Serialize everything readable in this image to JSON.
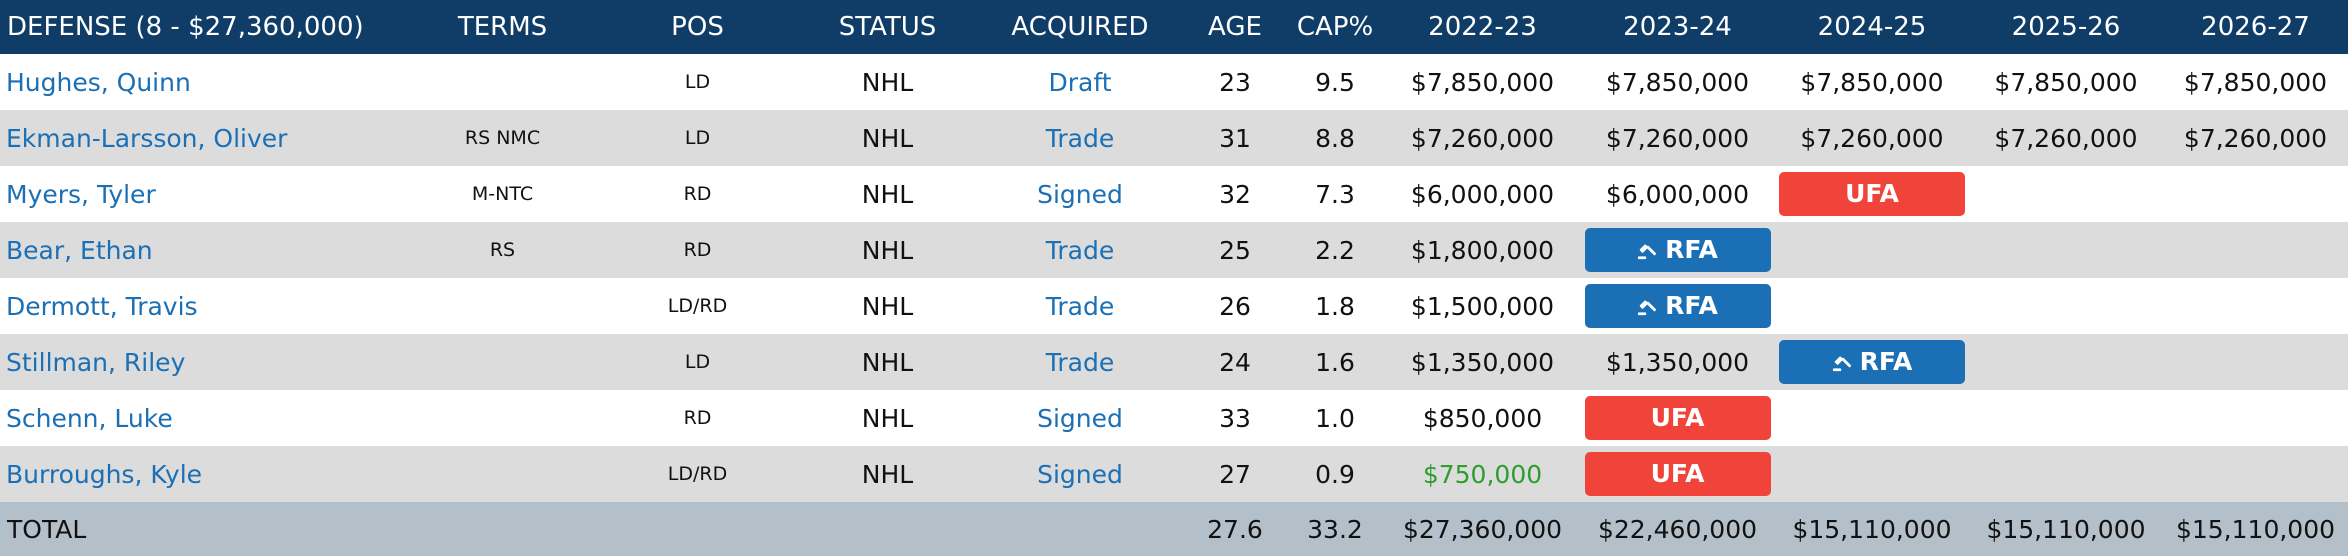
{
  "header": {
    "section": "DEFENSE (8 - $27,360,000)",
    "terms": "TERMS",
    "pos": "POS",
    "status": "STATUS",
    "acquired": "ACQUIRED",
    "age": "AGE",
    "cap_pct": "CAP%",
    "y1": "2022-23",
    "y2": "2023-24",
    "y3": "2024-25",
    "y4": "2025-26",
    "y5": "2026-27"
  },
  "colors": {
    "header_bg": "#0f3d68",
    "link": "#1b6fb5",
    "ufa": "#f0443a",
    "rfa": "#1b6fb5",
    "total_bg": "#b3c0c9",
    "green": "#2e9d2e"
  },
  "players": [
    {
      "name": "Hughes, Quinn",
      "terms": "",
      "pos": "LD",
      "status": "NHL",
      "acquired": "Draft",
      "age": "23",
      "cap_pct": "9.5",
      "y1": "$7,850,000",
      "y2": "$7,850,000",
      "y3": "$7,850,000",
      "y4": "$7,850,000",
      "y5": "$7,850,000"
    },
    {
      "name": "Ekman-Larsson, Oliver",
      "terms": "RS NMC",
      "pos": "LD",
      "status": "NHL",
      "acquired": "Trade",
      "age": "31",
      "cap_pct": "8.8",
      "y1": "$7,260,000",
      "y2": "$7,260,000",
      "y3": "$7,260,000",
      "y4": "$7,260,000",
      "y5": "$7,260,000"
    },
    {
      "name": "Myers, Tyler",
      "terms": "M-NTC",
      "pos": "RD",
      "status": "NHL",
      "acquired": "Signed",
      "age": "32",
      "cap_pct": "7.3",
      "y1": "$6,000,000",
      "y2": "$6,000,000",
      "y3_badge": "UFA"
    },
    {
      "name": "Bear, Ethan",
      "terms": "RS",
      "pos": "RD",
      "status": "NHL",
      "acquired": "Trade",
      "age": "25",
      "cap_pct": "2.2",
      "y1": "$1,800,000",
      "y2_badge": "RFA"
    },
    {
      "name": "Dermott, Travis",
      "terms": "",
      "pos": "LD/RD",
      "status": "NHL",
      "acquired": "Trade",
      "age": "26",
      "cap_pct": "1.8",
      "y1": "$1,500,000",
      "y2_badge": "RFA"
    },
    {
      "name": "Stillman, Riley",
      "terms": "",
      "pos": "LD",
      "status": "NHL",
      "acquired": "Trade",
      "age": "24",
      "cap_pct": "1.6",
      "y1": "$1,350,000",
      "y2": "$1,350,000",
      "y3_badge": "RFA"
    },
    {
      "name": "Schenn, Luke",
      "terms": "",
      "pos": "RD",
      "status": "NHL",
      "acquired": "Signed",
      "age": "33",
      "cap_pct": "1.0",
      "y1": "$850,000",
      "y2_badge": "UFA"
    },
    {
      "name": "Burroughs, Kyle",
      "terms": "",
      "pos": "LD/RD",
      "status": "NHL",
      "acquired": "Signed",
      "age": "27",
      "cap_pct": "0.9",
      "y1": "$750,000",
      "y2_badge": "UFA"
    }
  ],
  "total": {
    "label": "TOTAL",
    "age": "27.6",
    "cap_pct": "33.2",
    "y1": "$27,360,000",
    "y2": "$22,460,000",
    "y3": "$15,110,000",
    "y4": "$15,110,000",
    "y5": "$15,110,000"
  }
}
